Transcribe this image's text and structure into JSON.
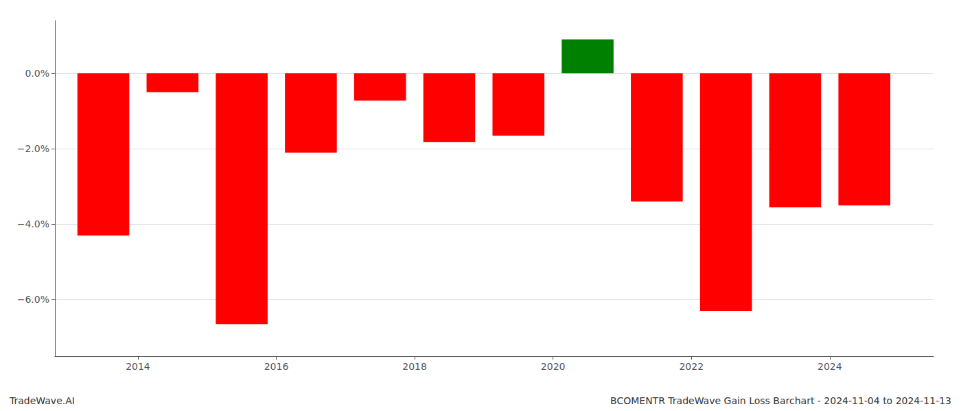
{
  "chart_data": {
    "type": "bar",
    "x": [
      2013.5,
      2014.5,
      2015.5,
      2016.5,
      2017.5,
      2018.5,
      2019.5,
      2020.5,
      2021.5,
      2022.5,
      2023.5,
      2024.5
    ],
    "values": [
      -4.3,
      -0.5,
      -6.65,
      -2.1,
      -0.72,
      -1.82,
      -1.65,
      0.9,
      -3.4,
      -6.3,
      -3.55,
      -3.5
    ],
    "colors": [
      "#ff0000",
      "#ff0000",
      "#ff0000",
      "#ff0000",
      "#ff0000",
      "#ff0000",
      "#ff0000",
      "#008000",
      "#ff0000",
      "#ff0000",
      "#ff0000",
      "#ff0000"
    ],
    "xlim": [
      2012.8,
      2025.5
    ],
    "xticks": [
      2014,
      2016,
      2018,
      2020,
      2022,
      2024
    ],
    "ylim": [
      -7.5,
      1.4
    ],
    "yticks": [
      {
        "value": 0.0,
        "label": "0.0%"
      },
      {
        "value": -2.0,
        "label": "−2.0%"
      },
      {
        "value": -4.0,
        "label": "−4.0%"
      },
      {
        "value": -6.0,
        "label": "−6.0%"
      }
    ],
    "grid": true,
    "annotations": [
      "TradeWave.AI",
      "BCOMENTR TradeWave Gain Loss Barchart - 2024-11-04 to 2024-11-13"
    ]
  }
}
